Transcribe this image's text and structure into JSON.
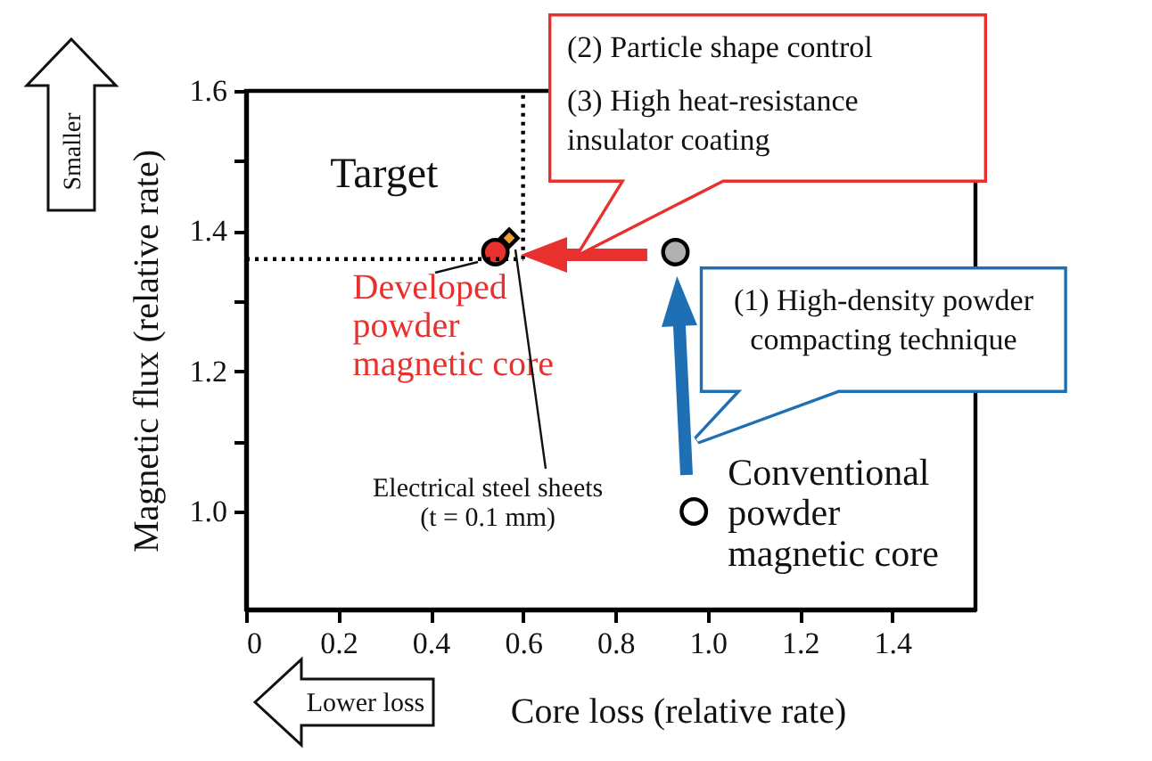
{
  "chart_data": {
    "type": "scatter",
    "xlabel": "Core loss (relative rate)",
    "ylabel": "Magnetic flux (relative rate)",
    "xlim": [
      0,
      1.58
    ],
    "xticks": [
      0,
      0.2,
      0.4,
      0.6,
      0.8,
      {
        "value": 1,
        "label": "1.0"
      },
      1.2,
      1.4
    ],
    "ylim": [
      0.86,
      1.6
    ],
    "yticks": [
      {
        "value": 1,
        "label": "1.0"
      },
      {
        "value": 1.1,
        "label": null
      },
      1.2,
      {
        "value": 1.3,
        "label": null
      },
      1.4,
      {
        "value": 1.5,
        "label": null
      },
      1.6
    ],
    "grid": false,
    "series": [
      {
        "name": "Electrical steel sheets\n(t = 0.1 mm)",
        "color": "#f0a030",
        "x": [
          0.57
        ],
        "values": [
          1.39
        ],
        "marker": "diamond"
      },
      {
        "name": "Developed\npowder\nmagnetic core",
        "color": "#e8312f",
        "x": [
          0.54
        ],
        "values": [
          1.37
        ],
        "marker": "circle"
      },
      {
        "color": "#b0b0b0",
        "x": [
          0.93
        ],
        "values": [
          1.37
        ],
        "marker": "circle"
      },
      {
        "name": "Conventional\npowder\nmagnetic core",
        "color": "#ffffff",
        "x": [
          0.97
        ],
        "values": [
          1.0
        ],
        "marker": "circle"
      }
    ],
    "ref_lines": [
      {
        "axis": "x",
        "value": 0.6,
        "line_style": "dotted"
      },
      {
        "axis": "y",
        "value": 1.36,
        "line_style": "dotted"
      }
    ],
    "annotations": [
      "Target",
      "(1) High-density powder compacting technique",
      "(2) Particle shape control",
      "(3) High heat-resistance insulator coating",
      "Smaller",
      "Lower loss"
    ]
  }
}
